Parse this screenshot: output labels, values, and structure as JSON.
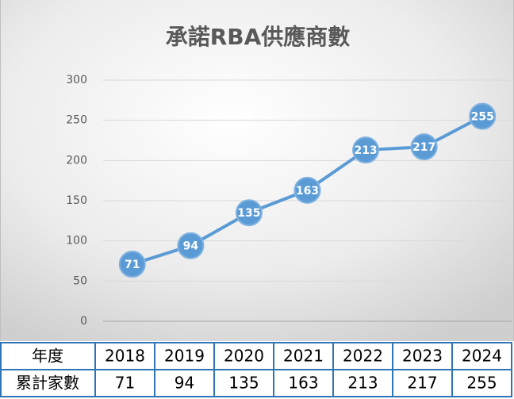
{
  "chart_data": {
    "type": "line",
    "title": "承諾RBA供應商數",
    "x_label": "年度",
    "categories": [
      "2018",
      "2019",
      "2020",
      "2021",
      "2022",
      "2023",
      "2024"
    ],
    "series": [
      {
        "name": "累計家數",
        "color": "#5b9bd5",
        "values": [
          71,
          94,
          135,
          163,
          213,
          217,
          255
        ]
      }
    ],
    "ylim": [
      0,
      300
    ],
    "yticks": [
      0,
      50,
      100,
      150,
      200,
      250,
      300
    ],
    "grid": true
  }
}
